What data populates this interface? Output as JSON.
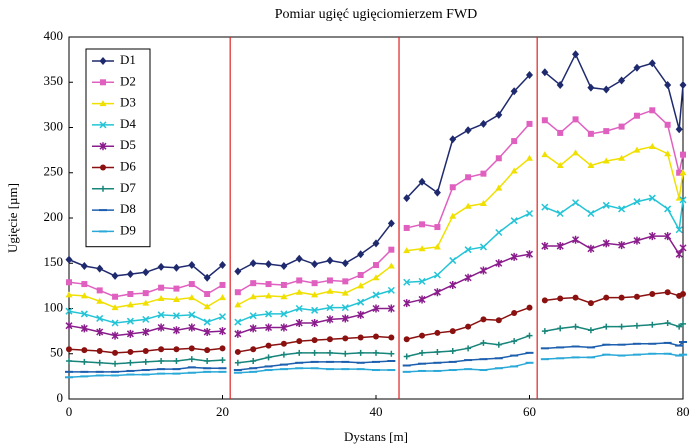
{
  "chart_data": {
    "type": "line",
    "title": "Pomiar ugięć ugięciomierzem FWD",
    "x_label": "Dystans [m]",
    "y_label": "Ugięcie [µm]",
    "x": [
      0,
      2,
      4,
      6,
      8,
      10,
      12,
      14,
      16,
      18,
      20,
      21,
      22,
      24,
      26,
      28,
      30,
      32,
      34,
      36,
      38,
      40,
      42,
      43,
      44,
      46,
      48,
      50,
      52,
      54,
      56,
      58,
      60,
      61,
      62,
      64,
      66,
      68,
      70,
      72,
      74,
      76,
      78,
      79.5,
      80
    ],
    "series": [
      {
        "name": "D1",
        "color": "#1f2a6e",
        "marker": "diamond",
        "values": [
          154,
          147,
          144,
          136,
          138,
          140,
          146,
          145,
          148,
          134,
          148,
          null,
          141,
          150,
          149,
          147,
          155,
          149,
          153,
          150,
          160,
          172,
          194,
          null,
          222,
          240,
          228,
          287,
          297,
          304,
          314,
          340,
          358,
          null,
          361,
          347,
          381,
          344,
          342,
          352,
          366,
          371,
          347,
          298,
          347
        ]
      },
      {
        "name": "D2",
        "color": "#e060c0",
        "marker": "square",
        "values": [
          129,
          127,
          120,
          113,
          116,
          117,
          123,
          122,
          127,
          116,
          126,
          null,
          118,
          128,
          127,
          126,
          131,
          128,
          131,
          130,
          137,
          148,
          165,
          null,
          189,
          193,
          190,
          234,
          245,
          249,
          266,
          285,
          304,
          null,
          308,
          294,
          309,
          293,
          296,
          301,
          313,
          319,
          303,
          250,
          270
        ]
      },
      {
        "name": "D3",
        "color": "#f0e000",
        "marker": "triangle",
        "values": [
          115,
          114,
          108,
          101,
          104,
          106,
          111,
          110,
          112,
          102,
          112,
          null,
          104,
          113,
          114,
          113,
          118,
          115,
          119,
          117,
          125,
          134,
          147,
          null,
          164,
          166,
          168,
          202,
          213,
          216,
          233,
          252,
          266,
          null,
          270,
          258,
          272,
          258,
          263,
          266,
          275,
          279,
          271,
          222,
          250
        ]
      },
      {
        "name": "D4",
        "color": "#22c4d6",
        "marker": "cross",
        "values": [
          97,
          94,
          89,
          84,
          86,
          88,
          93,
          92,
          93,
          85,
          91,
          null,
          85,
          92,
          94,
          94,
          100,
          98,
          101,
          101,
          107,
          115,
          120,
          null,
          129,
          130,
          137,
          153,
          165,
          168,
          184,
          197,
          205,
          null,
          212,
          205,
          217,
          205,
          214,
          210,
          218,
          222,
          210,
          187,
          220
        ]
      },
      {
        "name": "D5",
        "color": "#8a1c8c",
        "marker": "star",
        "values": [
          81,
          78,
          74,
          70,
          72,
          74,
          79,
          76,
          79,
          74,
          75,
          null,
          72,
          78,
          79,
          79,
          84,
          84,
          88,
          89,
          93,
          100,
          100,
          null,
          106,
          110,
          118,
          126,
          134,
          142,
          150,
          157,
          160,
          null,
          169,
          169,
          176,
          166,
          172,
          170,
          175,
          180,
          180,
          160,
          167
        ]
      },
      {
        "name": "D6",
        "color": "#8b1010",
        "marker": "circle",
        "values": [
          55,
          54,
          53,
          51,
          52,
          53,
          55,
          55,
          56,
          54,
          56,
          null,
          52,
          55,
          59,
          61,
          64,
          65,
          66,
          67,
          68,
          69,
          68,
          null,
          66,
          70,
          73,
          75,
          80,
          88,
          87,
          95,
          101,
          null,
          109,
          111,
          112,
          106,
          112,
          112,
          113,
          116,
          118,
          114,
          116
        ]
      },
      {
        "name": "D7",
        "color": "#17857a",
        "marker": "plus",
        "values": [
          42,
          41,
          40,
          39,
          40,
          41,
          42,
          42,
          44,
          42,
          43,
          null,
          40,
          42,
          46,
          49,
          51,
          51,
          51,
          50,
          51,
          51,
          50,
          null,
          47,
          51,
          52,
          53,
          56,
          62,
          60,
          64,
          70,
          null,
          75,
          78,
          80,
          76,
          80,
          80,
          81,
          82,
          84,
          80,
          83
        ]
      },
      {
        "name": "D8",
        "color": "#1d5fae",
        "marker": "dash",
        "values": [
          30,
          30,
          30,
          30,
          31,
          32,
          33,
          33,
          35,
          34,
          34,
          null,
          32,
          34,
          36,
          38,
          40,
          41,
          41,
          41,
          40,
          41,
          42,
          null,
          37,
          39,
          40,
          41,
          43,
          44,
          45,
          48,
          51,
          null,
          56,
          57,
          58,
          57,
          60,
          60,
          61,
          61,
          62,
          59,
          63
        ]
      },
      {
        "name": "D9",
        "color": "#2aa8d8",
        "marker": "dash",
        "values": [
          24,
          25,
          26,
          26,
          27,
          27,
          28,
          28,
          29,
          30,
          30,
          null,
          29,
          30,
          32,
          33,
          34,
          34,
          33,
          33,
          33,
          32,
          32,
          null,
          30,
          31,
          31,
          32,
          33,
          32,
          34,
          36,
          40,
          null,
          44,
          45,
          46,
          46,
          49,
          48,
          49,
          50,
          50,
          48,
          49
        ]
      }
    ],
    "vlines": [
      21,
      43,
      61
    ],
    "vline_color": "#e02020",
    "xlim": [
      0,
      80
    ],
    "xticks": [
      0,
      20,
      40,
      60,
      80
    ],
    "ylim": [
      0,
      400
    ],
    "yticks": [
      0,
      50,
      100,
      150,
      200,
      250,
      300,
      350,
      400
    ],
    "grid": false,
    "legend": "top-left"
  }
}
